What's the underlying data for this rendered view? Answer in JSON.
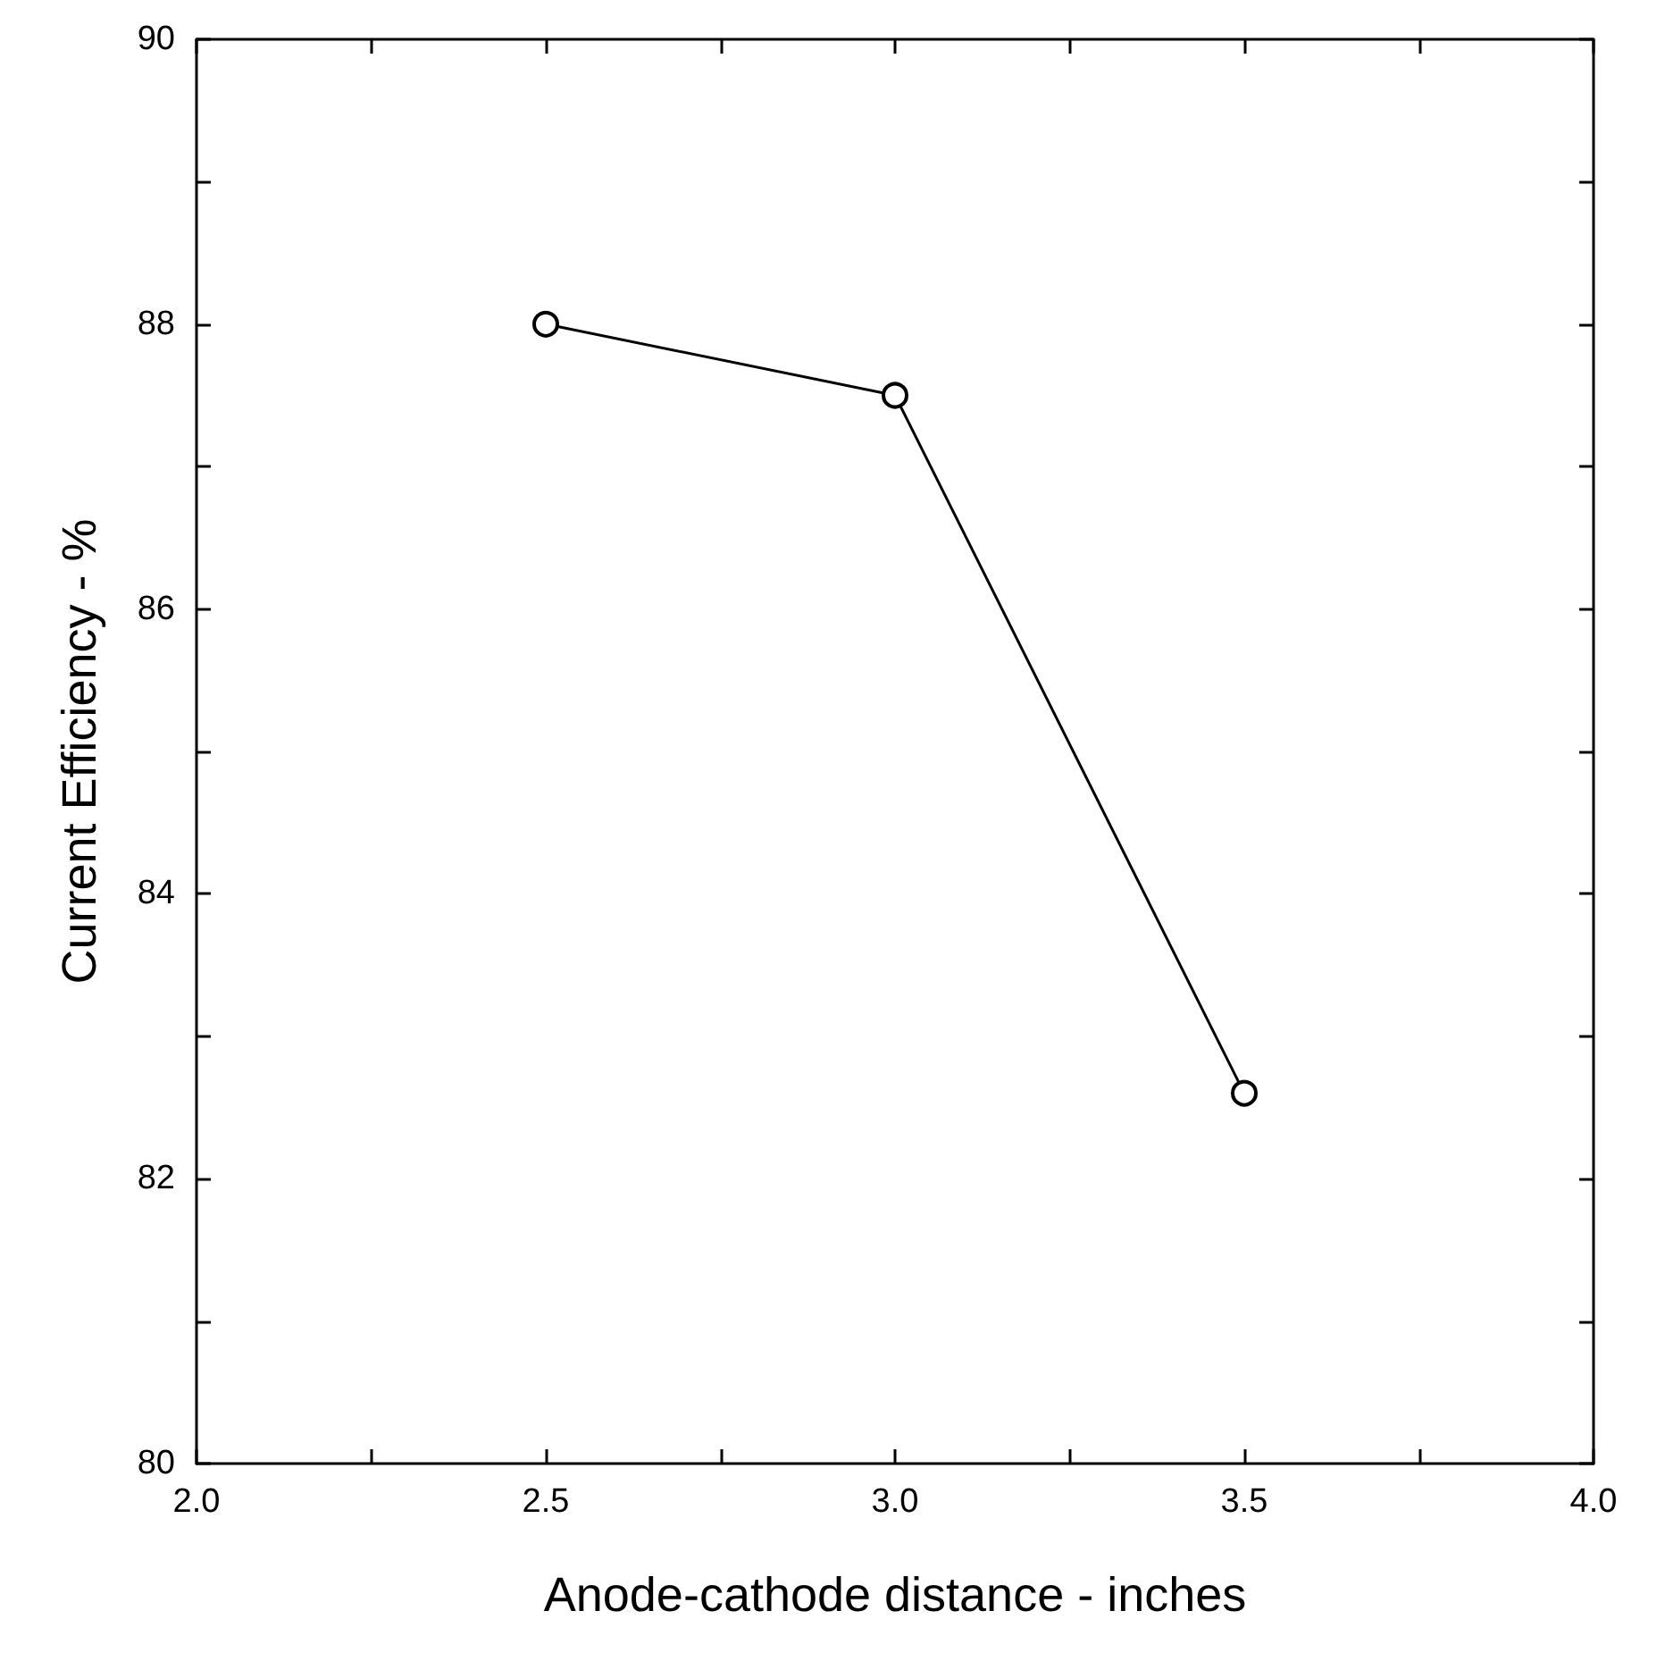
{
  "chart_data": {
    "type": "line",
    "xlabel": "Anode-cathode distance - inches",
    "ylabel": "Current Efficiency - %",
    "x": [
      2.5,
      3.0,
      3.5
    ],
    "series": [
      {
        "color": "#000000",
        "values": [
          88.0,
          87.5,
          82.6
        ]
      }
    ],
    "marker": "circle",
    "line_style": "solid",
    "xlim": [
      2.0,
      4.0
    ],
    "xticks": [
      {
        "value": 2.0,
        "label": "2.0"
      },
      {
        "value": 2.25,
        "label": null
      },
      {
        "value": 2.5,
        "label": "2.5"
      },
      {
        "value": 2.75,
        "label": null
      },
      {
        "value": 3.0,
        "label": "3.0"
      },
      {
        "value": 3.25,
        "label": null
      },
      {
        "value": 3.5,
        "label": "3.5"
      },
      {
        "value": 3.75,
        "label": null
      },
      {
        "value": 4.0,
        "label": "4.0"
      }
    ],
    "ylim": [
      80,
      90
    ],
    "yticks": [
      80,
      {
        "value": 81,
        "label": null
      },
      82,
      {
        "value": 83,
        "label": null
      },
      84,
      {
        "value": 85,
        "label": null
      },
      86,
      {
        "value": 87,
        "label": null
      },
      88,
      {
        "value": 89,
        "label": null
      },
      90
    ],
    "grid": false
  }
}
